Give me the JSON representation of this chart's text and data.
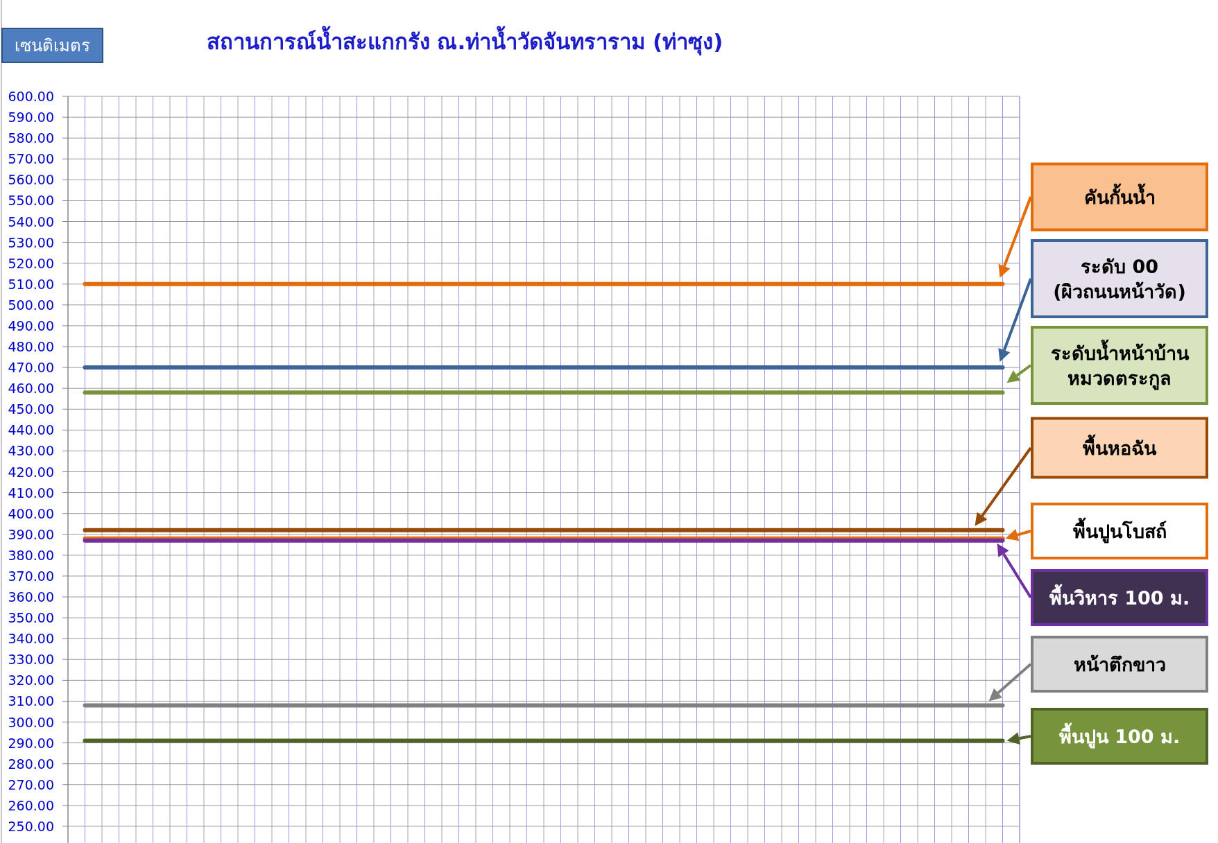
{
  "chart_data": {
    "type": "line",
    "title": "สถานการณ์น้ำสะแกกรัง ณ.ท่าน้ำวัดจันทราราม (ท่าซุง)",
    "ylabel": "เซนติเมตร",
    "grid": true,
    "legend": "right",
    "categories": [
      null,
      null,
      null,
      null,
      null,
      null,
      null,
      null,
      null,
      null,
      null,
      null,
      null,
      null,
      null,
      null,
      null,
      null,
      null,
      null,
      null,
      null,
      null,
      null,
      null,
      null,
      null,
      null,
      null,
      null,
      null,
      null,
      null,
      null,
      null,
      null,
      null,
      null,
      null,
      null,
      null,
      null,
      null,
      null,
      null,
      null,
      null,
      null,
      null,
      null,
      null,
      null,
      null,
      null,
      null
    ],
    "ylim": [
      242,
      600
    ],
    "yticks": [
      {
        "value": 250,
        "label": "250.00"
      },
      {
        "value": 260,
        "label": "260.00"
      },
      {
        "value": 270,
        "label": "270.00"
      },
      {
        "value": 280,
        "label": "280.00"
      },
      {
        "value": 290,
        "label": "290.00"
      },
      {
        "value": 300,
        "label": "300.00"
      },
      {
        "value": 310,
        "label": "310.00"
      },
      {
        "value": 320,
        "label": "320.00"
      },
      {
        "value": 330,
        "label": "330.00"
      },
      {
        "value": 340,
        "label": "340.00"
      },
      {
        "value": 350,
        "label": "350.00"
      },
      {
        "value": 360,
        "label": "360.00"
      },
      {
        "value": 370,
        "label": "370.00"
      },
      {
        "value": 380,
        "label": "380.00"
      },
      {
        "value": 390,
        "label": "390.00"
      },
      {
        "value": 400,
        "label": "400.00"
      },
      {
        "value": 410,
        "label": "410.00"
      },
      {
        "value": 420,
        "label": "420.00"
      },
      {
        "value": 430,
        "label": "430.00"
      },
      {
        "value": 440,
        "label": "440.00"
      },
      {
        "value": 450,
        "label": "450.00"
      },
      {
        "value": 460,
        "label": "460.00"
      },
      {
        "value": 470,
        "label": "470.00"
      },
      {
        "value": 480,
        "label": "480.00"
      },
      {
        "value": 490,
        "label": "490.00"
      },
      {
        "value": 500,
        "label": "500.00"
      },
      {
        "value": 510,
        "label": "510.00"
      },
      {
        "value": 520,
        "label": "520.00"
      },
      {
        "value": 530,
        "label": "530.00"
      },
      {
        "value": 540,
        "label": "540.00"
      },
      {
        "value": 550,
        "label": "550.00"
      },
      {
        "value": 560,
        "label": "560.00"
      },
      {
        "value": 570,
        "label": "570.00"
      },
      {
        "value": 580,
        "label": "580.00"
      },
      {
        "value": 590,
        "label": "590.00"
      },
      {
        "value": 600,
        "label": "600.00"
      }
    ],
    "series": [
      {
        "name": "คันกั้นน้ำ",
        "color": "#e36c0a",
        "values": [
          510,
          510,
          510,
          510,
          510,
          510,
          510,
          510,
          510,
          510,
          510,
          510,
          510,
          510,
          510,
          510,
          510,
          510,
          510,
          510,
          510,
          510,
          510,
          510,
          510,
          510,
          510,
          510,
          510,
          510,
          510,
          510,
          510,
          510,
          510,
          510,
          510,
          510,
          510,
          510,
          510,
          510,
          510,
          510,
          510,
          510,
          510,
          510,
          510,
          510,
          510,
          510,
          510,
          510,
          510
        ]
      },
      {
        "name": "ระดับ 00\n(ผิวถนนหน้าวัด)",
        "color": "#3c6496",
        "values": [
          470,
          470,
          470,
          470,
          470,
          470,
          470,
          470,
          470,
          470,
          470,
          470,
          470,
          470,
          470,
          470,
          470,
          470,
          470,
          470,
          470,
          470,
          470,
          470,
          470,
          470,
          470,
          470,
          470,
          470,
          470,
          470,
          470,
          470,
          470,
          470,
          470,
          470,
          470,
          470,
          470,
          470,
          470,
          470,
          470,
          470,
          470,
          470,
          470,
          470,
          470,
          470,
          470,
          470,
          470
        ]
      },
      {
        "name": "ระดับน้ำหน้าบ้าน\nหมวดตระกูล",
        "color": "#77933c",
        "values": [
          458,
          458,
          458,
          458,
          458,
          458,
          458,
          458,
          458,
          458,
          458,
          458,
          458,
          458,
          458,
          458,
          458,
          458,
          458,
          458,
          458,
          458,
          458,
          458,
          458,
          458,
          458,
          458,
          458,
          458,
          458,
          458,
          458,
          458,
          458,
          458,
          458,
          458,
          458,
          458,
          458,
          458,
          458,
          458,
          458,
          458,
          458,
          458,
          458,
          458,
          458,
          458,
          458,
          458,
          458
        ]
      },
      {
        "name": "พื้นหอฉัน",
        "color": "#984807",
        "values": [
          392,
          392,
          392,
          392,
          392,
          392,
          392,
          392,
          392,
          392,
          392,
          392,
          392,
          392,
          392,
          392,
          392,
          392,
          392,
          392,
          392,
          392,
          392,
          392,
          392,
          392,
          392,
          392,
          392,
          392,
          392,
          392,
          392,
          392,
          392,
          392,
          392,
          392,
          392,
          392,
          392,
          392,
          392,
          392,
          392,
          392,
          392,
          392,
          392,
          392,
          392,
          392,
          392,
          392,
          392
        ]
      },
      {
        "name": "พื้นปูนโบสถ์",
        "color": "#e46c0a",
        "values": [
          388,
          388,
          388,
          388,
          388,
          388,
          388,
          388,
          388,
          388,
          388,
          388,
          388,
          388,
          388,
          388,
          388,
          388,
          388,
          388,
          388,
          388,
          388,
          388,
          388,
          388,
          388,
          388,
          388,
          388,
          388,
          388,
          388,
          388,
          388,
          388,
          388,
          388,
          388,
          388,
          388,
          388,
          388,
          388,
          388,
          388,
          388,
          388,
          388,
          388,
          388,
          388,
          388,
          388,
          388
        ]
      },
      {
        "name": "พื้นวิหาร 100 ม.",
        "color": "#7030a0",
        "values": [
          387,
          387,
          387,
          387,
          387,
          387,
          387,
          387,
          387,
          387,
          387,
          387,
          387,
          387,
          387,
          387,
          387,
          387,
          387,
          387,
          387,
          387,
          387,
          387,
          387,
          387,
          387,
          387,
          387,
          387,
          387,
          387,
          387,
          387,
          387,
          387,
          387,
          387,
          387,
          387,
          387,
          387,
          387,
          387,
          387,
          387,
          387,
          387,
          387,
          387,
          387,
          387,
          387,
          387,
          387
        ]
      },
      {
        "name": "หน้าตึกขาว",
        "color": "#808080",
        "values": [
          308,
          308,
          308,
          308,
          308,
          308,
          308,
          308,
          308,
          308,
          308,
          308,
          308,
          308,
          308,
          308,
          308,
          308,
          308,
          308,
          308,
          308,
          308,
          308,
          308,
          308,
          308,
          308,
          308,
          308,
          308,
          308,
          308,
          308,
          308,
          308,
          308,
          308,
          308,
          308,
          308,
          308,
          308,
          308,
          308,
          308,
          308,
          308,
          308,
          308,
          308,
          308,
          308,
          308,
          308
        ]
      },
      {
        "name": "พื้นปูน 100 ม.",
        "color": "#4f6228",
        "values": [
          291,
          291,
          291,
          291,
          291,
          291,
          291,
          291,
          291,
          291,
          291,
          291,
          291,
          291,
          291,
          291,
          291,
          291,
          291,
          291,
          291,
          291,
          291,
          291,
          291,
          291,
          291,
          291,
          291,
          291,
          291,
          291,
          291,
          291,
          291,
          291,
          291,
          291,
          291,
          291,
          291,
          291,
          291,
          291,
          291,
          291,
          291,
          291,
          291,
          291,
          291,
          291,
          291,
          291,
          291
        ]
      }
    ]
  }
}
